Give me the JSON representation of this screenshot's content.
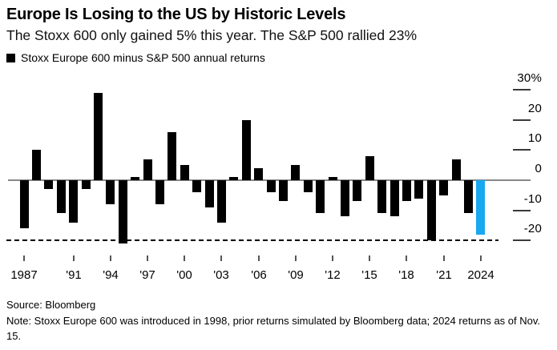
{
  "header": {
    "title": "Europe Is Losing to the US by Historic Levels",
    "subtitle": "The Stoxx 600 only gained 5% this year. The S&P 500 rallied 23%",
    "legend": {
      "swatch_icon": "black-square",
      "swatch_color": "#000000",
      "label": "Stoxx Europe 600 minus S&P 500 annual returns"
    }
  },
  "chart_data": {
    "type": "bar",
    "title": "Stoxx Europe 600 minus S&P 500 annual returns",
    "unit": "%",
    "x": [
      1987,
      1988,
      1989,
      1990,
      1991,
      1992,
      1993,
      1994,
      1995,
      1996,
      1997,
      1998,
      1999,
      2000,
      2001,
      2002,
      2003,
      2004,
      2005,
      2006,
      2007,
      2008,
      2009,
      2010,
      2011,
      2012,
      2013,
      2014,
      2015,
      2016,
      2017,
      2018,
      2019,
      2020,
      2021,
      2022,
      2023,
      2024
    ],
    "values": [
      -16,
      10,
      -3,
      -11,
      -14,
      -3,
      29,
      -8,
      -21,
      1,
      7,
      -8,
      16,
      5,
      -4,
      -9,
      -14,
      1,
      20,
      4,
      -4,
      -7,
      5,
      -4,
      -11,
      1,
      -12,
      -7,
      8,
      -11,
      -12,
      -7,
      -6,
      -20,
      -5,
      7,
      -11,
      -18
    ],
    "bar_color": "#000000",
    "highlight_year": 2024,
    "highlight_color": "#18a7f0",
    "y_ticks": [
      30,
      20,
      10,
      0,
      -10,
      -20
    ],
    "y_tick_labels": [
      "30%",
      "20",
      "10",
      "0",
      "-10",
      "-20"
    ],
    "ylim": [
      -24,
      35
    ],
    "x_tick_years": [
      1987,
      1991,
      1994,
      1997,
      2000,
      2003,
      2006,
      2009,
      2012,
      2015,
      2018,
      2021,
      2024
    ],
    "x_tick_labels": [
      "1987",
      "'91",
      "'94",
      "'97",
      "'00",
      "'03",
      "'06",
      "'09",
      "'12",
      "'15",
      "'18",
      "'21",
      "2024"
    ],
    "reference_line": {
      "value": -20,
      "style": "dashed",
      "color": "#000000"
    },
    "axis_color": "#888888",
    "grid": false,
    "legend_position": "top-left"
  },
  "footer": {
    "source": "Source: Bloomberg",
    "note": "Note: Stoxx Europe 600 was introduced in 1998, prior returns simulated by Bloomberg data; 2024 returns as of Nov. 15."
  }
}
